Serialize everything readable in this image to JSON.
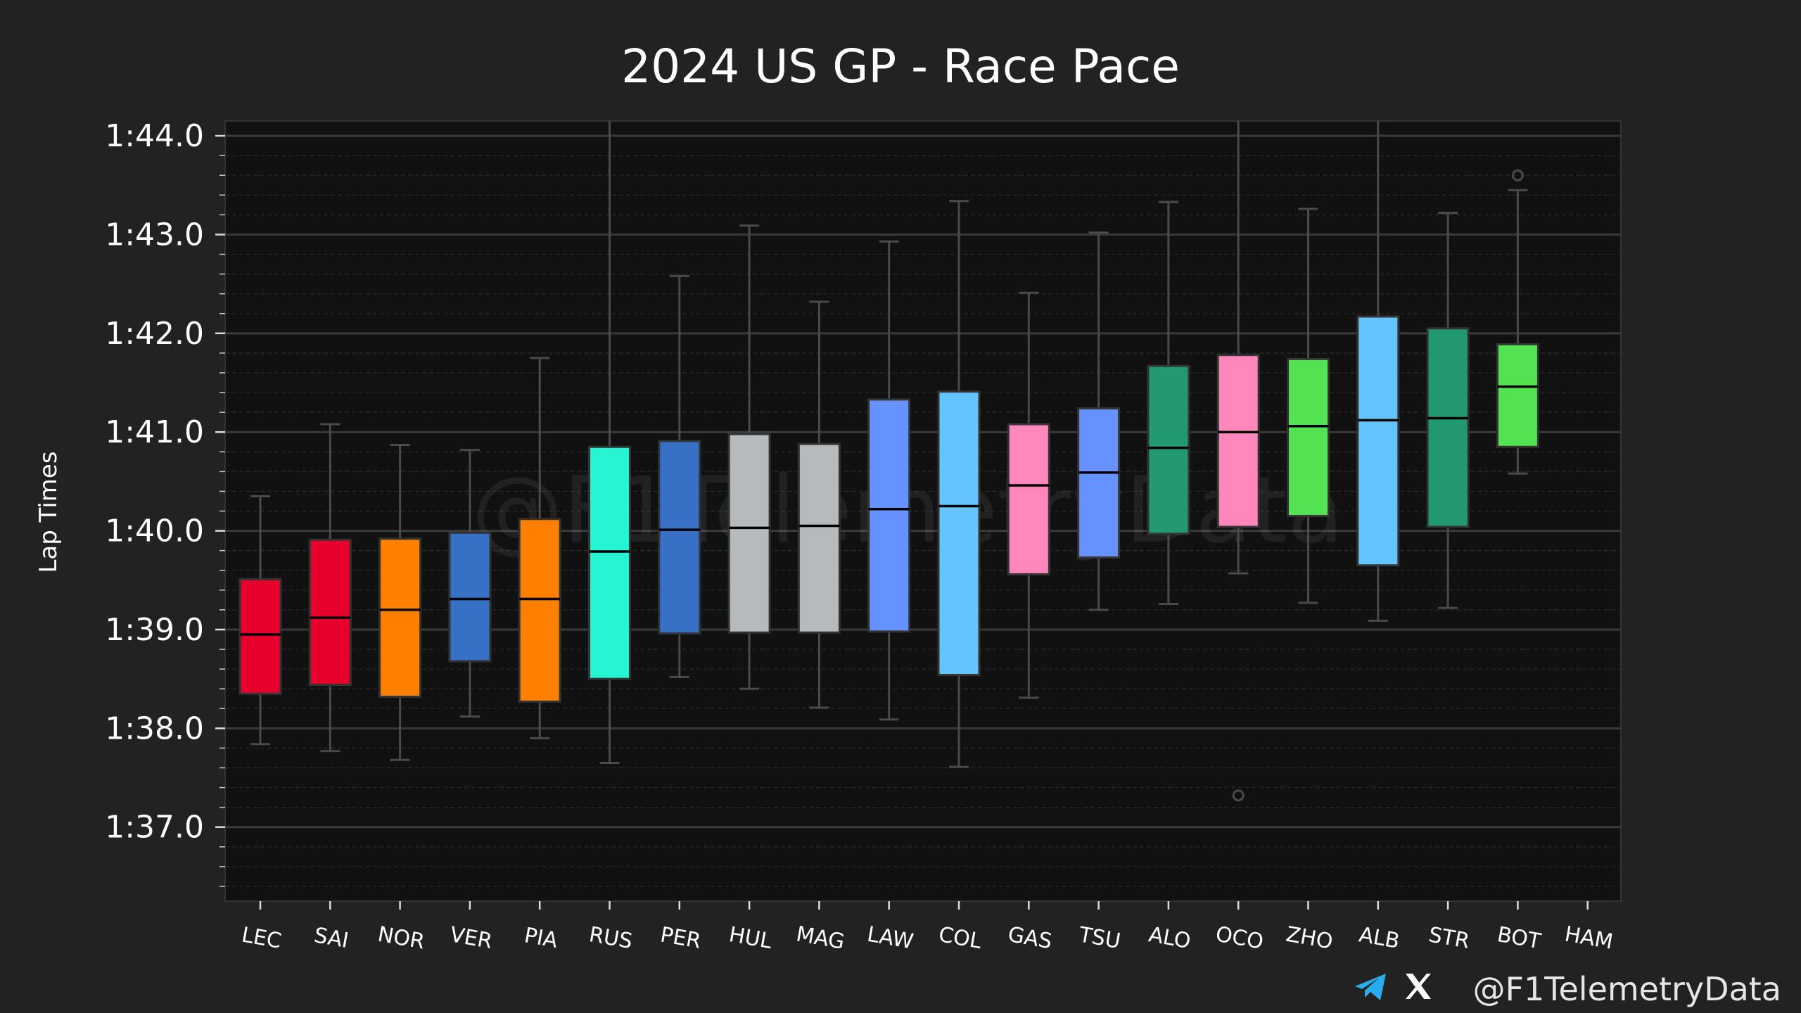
{
  "chart_data": {
    "type": "box",
    "title": "2024 US GP - Race Pace",
    "ylabel": "Lap Times",
    "xlabel": "",
    "ylim": [
      96.25,
      104.15
    ],
    "y_ticks": [
      97,
      98,
      99,
      100,
      101,
      102,
      103,
      104
    ],
    "y_tick_labels": [
      "1:37.0",
      "1:38.0",
      "1:39.0",
      "1:40.0",
      "1:41.0",
      "1:42.0",
      "1:43.0",
      "1:44.0"
    ],
    "y_minor_step": 0.2,
    "grid": true,
    "categories": [
      "LEC",
      "SAI",
      "NOR",
      "VER",
      "PIA",
      "RUS",
      "PER",
      "HUL",
      "MAG",
      "LAW",
      "COL",
      "GAS",
      "TSU",
      "ALO",
      "OCO",
      "ZHO",
      "ALB",
      "STR",
      "BOT",
      "HAM"
    ],
    "series": [
      {
        "driver": "LEC",
        "color": "#E8002D",
        "whislo": 97.84,
        "q1": 98.35,
        "med": 98.95,
        "q3": 99.51,
        "whishi": 100.35,
        "fliers": []
      },
      {
        "driver": "SAI",
        "color": "#E8002D",
        "whislo": 97.77,
        "q1": 98.44,
        "med": 99.12,
        "q3": 99.91,
        "whishi": 101.08,
        "fliers": []
      },
      {
        "driver": "NOR",
        "color": "#FF8000",
        "whislo": 97.68,
        "q1": 98.32,
        "med": 99.2,
        "q3": 99.92,
        "whishi": 100.87,
        "fliers": []
      },
      {
        "driver": "VER",
        "color": "#3671C6",
        "whislo": 98.12,
        "q1": 98.68,
        "med": 99.31,
        "q3": 99.98,
        "whishi": 100.82,
        "fliers": []
      },
      {
        "driver": "PIA",
        "color": "#FF8000",
        "whislo": 97.9,
        "q1": 98.27,
        "med": 99.31,
        "q3": 100.12,
        "whishi": 101.75,
        "fliers": []
      },
      {
        "driver": "RUS",
        "color": "#27F4D2",
        "whislo": 97.65,
        "q1": 98.5,
        "med": 99.79,
        "q3": 100.85,
        "whishi": 104.15,
        "fliers": []
      },
      {
        "driver": "PER",
        "color": "#3671C6",
        "whislo": 98.52,
        "q1": 98.96,
        "med": 100.01,
        "q3": 100.91,
        "whishi": 102.58,
        "fliers": []
      },
      {
        "driver": "HUL",
        "color": "#B6BABD",
        "whislo": 98.4,
        "q1": 98.97,
        "med": 100.03,
        "q3": 100.98,
        "whishi": 103.09,
        "fliers": []
      },
      {
        "driver": "MAG",
        "color": "#B6BABD",
        "whislo": 98.21,
        "q1": 98.97,
        "med": 100.05,
        "q3": 100.88,
        "whishi": 102.32,
        "fliers": []
      },
      {
        "driver": "LAW",
        "color": "#6692FF",
        "whislo": 98.09,
        "q1": 98.98,
        "med": 100.22,
        "q3": 101.33,
        "whishi": 102.93,
        "fliers": []
      },
      {
        "driver": "COL",
        "color": "#64C4FF",
        "whislo": 97.61,
        "q1": 98.54,
        "med": 100.25,
        "q3": 101.41,
        "whishi": 103.34,
        "fliers": []
      },
      {
        "driver": "GAS",
        "color": "#FF87BC",
        "whislo": 98.31,
        "q1": 99.56,
        "med": 100.46,
        "q3": 101.08,
        "whishi": 102.41,
        "fliers": []
      },
      {
        "driver": "TSU",
        "color": "#6692FF",
        "whislo": 99.2,
        "q1": 99.73,
        "med": 100.59,
        "q3": 101.24,
        "whishi": 103.02,
        "fliers": []
      },
      {
        "driver": "ALO",
        "color": "#229971",
        "whislo": 99.26,
        "q1": 99.97,
        "med": 100.84,
        "q3": 101.67,
        "whishi": 103.33,
        "fliers": []
      },
      {
        "driver": "OCO",
        "color": "#FF87BC",
        "whislo": 99.57,
        "q1": 100.04,
        "med": 101.0,
        "q3": 101.78,
        "whishi": 104.15,
        "fliers": [
          97.32
        ]
      },
      {
        "driver": "ZHO",
        "color": "#52E252",
        "whislo": 99.27,
        "q1": 100.15,
        "med": 101.06,
        "q3": 101.74,
        "whishi": 103.26,
        "fliers": []
      },
      {
        "driver": "ALB",
        "color": "#64C4FF",
        "whislo": 99.09,
        "q1": 99.65,
        "med": 101.12,
        "q3": 102.17,
        "whishi": 104.15,
        "fliers": []
      },
      {
        "driver": "STR",
        "color": "#229971",
        "whislo": 99.22,
        "q1": 100.04,
        "med": 101.14,
        "q3": 102.05,
        "whishi": 103.22,
        "fliers": []
      },
      {
        "driver": "BOT",
        "color": "#52E252",
        "whislo": 100.58,
        "q1": 100.85,
        "med": 101.46,
        "q3": 101.89,
        "whishi": 103.45,
        "fliers": [
          103.6
        ]
      },
      {
        "driver": "HAM",
        "color": "#27F4D2",
        "whislo": null,
        "q1": null,
        "med": null,
        "q3": null,
        "whishi": null,
        "fliers": []
      }
    ],
    "colors": {
      "figure_background": "#222222",
      "plot_background": "#111111",
      "grid_major": "#3a3a3a",
      "grid_minor": "#2a2a2a",
      "whisker": "#4a4a4a",
      "median": "#000000"
    }
  },
  "watermark": "@F1TelemetryData",
  "credit": {
    "handle": "@F1TelemetryData",
    "icons": [
      "telegram-icon",
      "x-icon"
    ]
  }
}
